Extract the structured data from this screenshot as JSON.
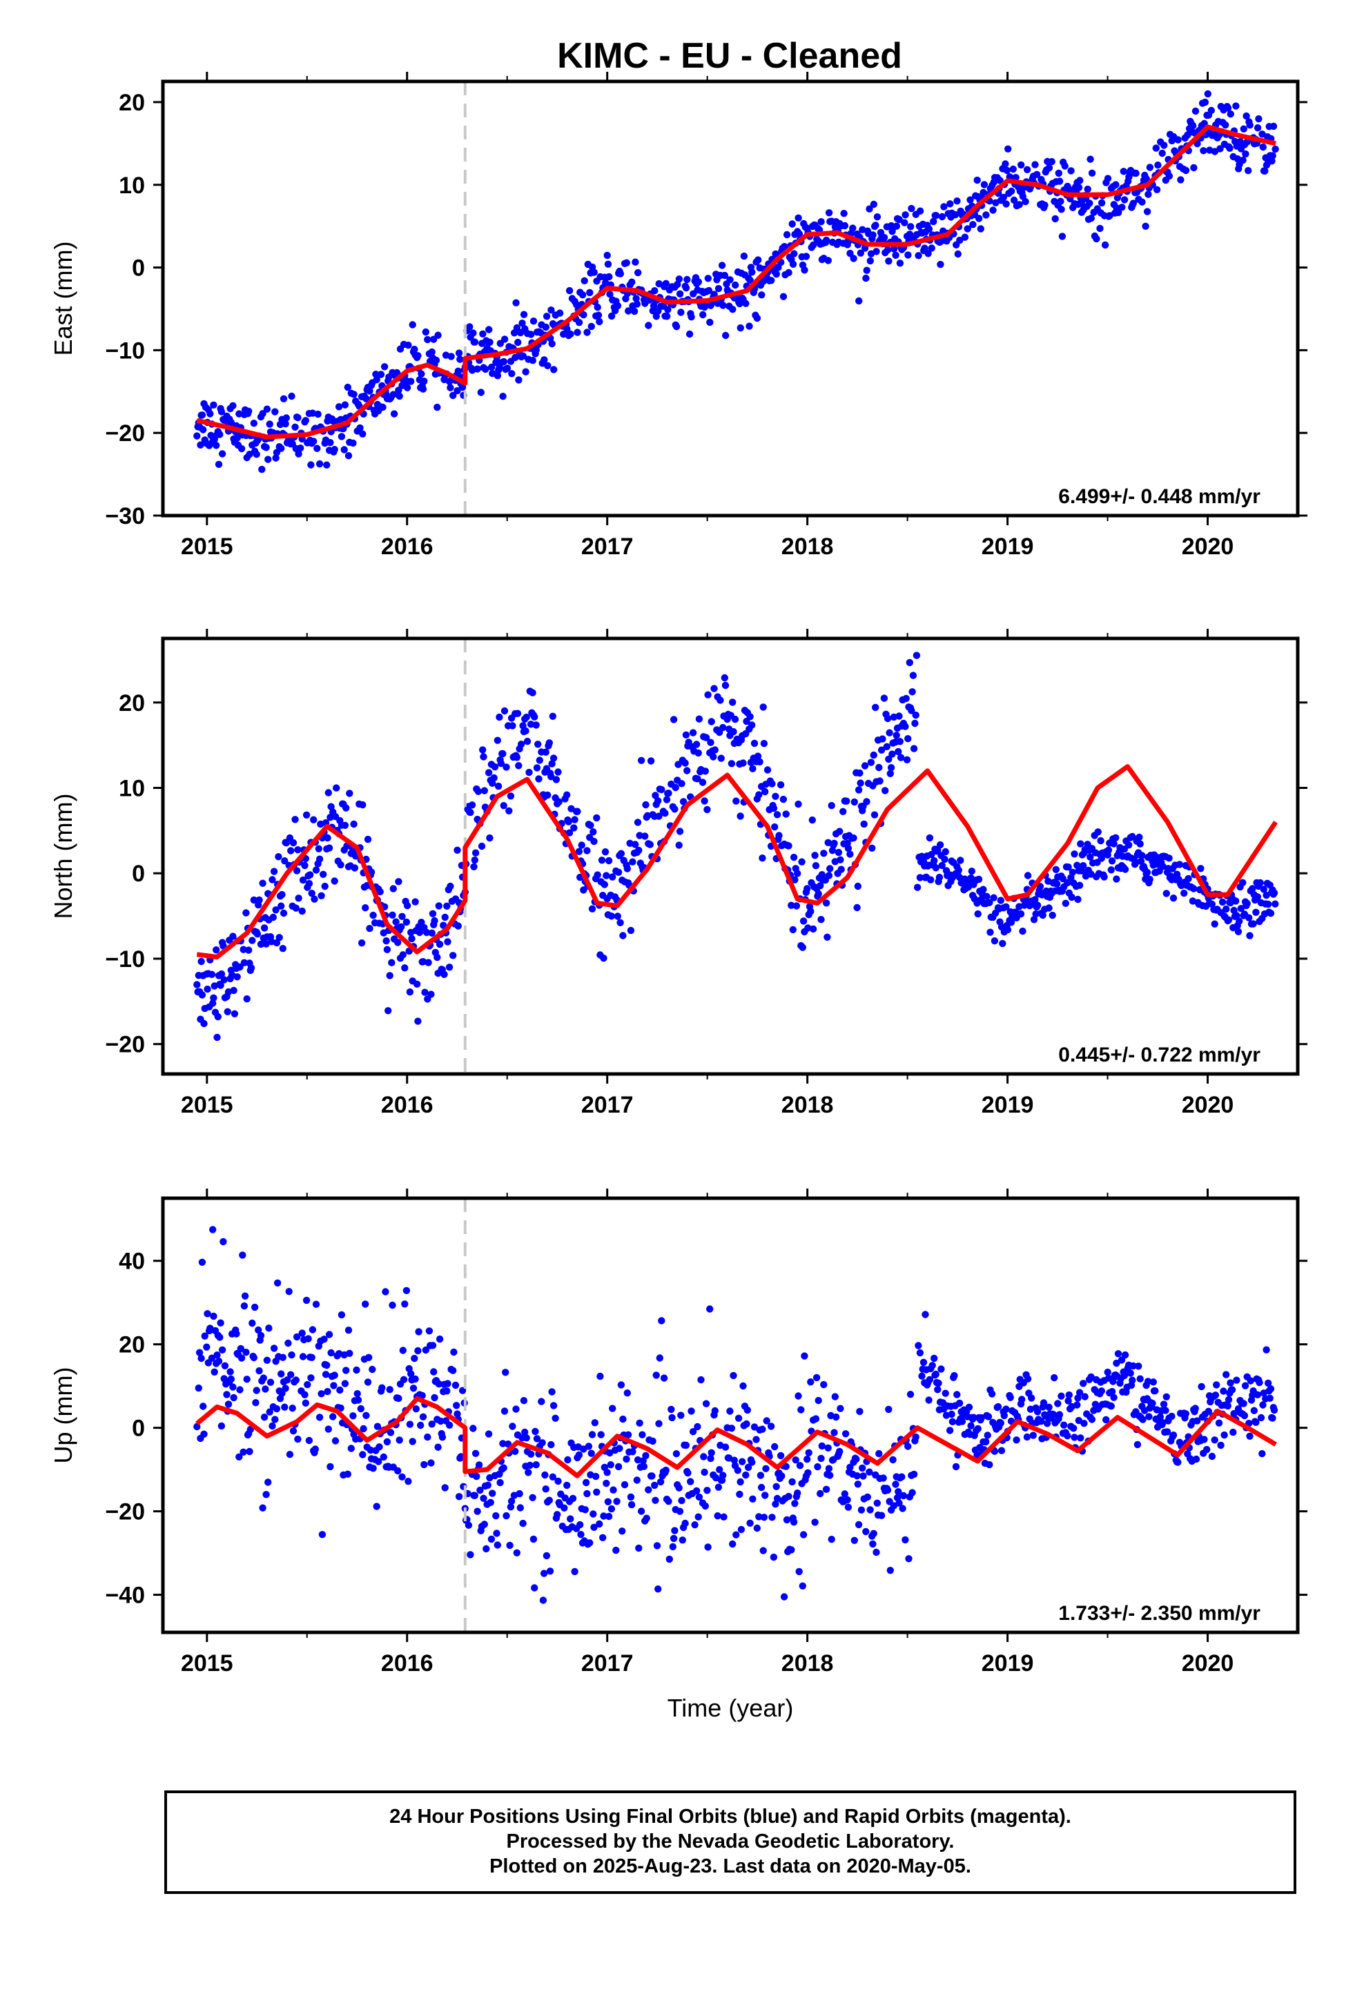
{
  "title": "KIMC  - EU - Cleaned",
  "xlabel": "Time (year)",
  "footer": {
    "line1": "24 Hour Positions Using Final Orbits (blue) and Rapid Orbits (magenta).",
    "line2": "Processed by the Nevada Geodetic Laboratory.",
    "line3": "Plotted on 2025-Aug-23. Last data on 2020-May-05."
  },
  "colors": {
    "data": "#0000ff",
    "model": "#ff0000",
    "break_line": "#c8c8c8"
  },
  "chart_data": [
    {
      "type": "scatter",
      "panel": "east",
      "ylabel": "East (mm)",
      "xlim": [
        2014.78,
        2020.45
      ],
      "ylim": [
        -30,
        22.5
      ],
      "xticks": [
        2015,
        2016,
        2017,
        2018,
        2019,
        2020
      ],
      "yticks": [
        -30,
        -20,
        -10,
        0,
        10,
        20
      ],
      "rate_text": "6.499+/- 0.448 mm/yr",
      "equipment_break": 2016.29,
      "data_range": [
        2014.95,
        2020.34
      ],
      "model": {
        "breaks": [
          2016.29
        ],
        "points": [
          [
            2014.95,
            -18.5
          ],
          [
            2015.1,
            -19.3
          ],
          [
            2015.3,
            -20.5
          ],
          [
            2015.5,
            -20.2
          ],
          [
            2015.7,
            -18.8
          ],
          [
            2015.85,
            -15.5
          ],
          [
            2016.0,
            -12.5
          ],
          [
            2016.1,
            -11.8
          ],
          [
            2016.2,
            -12.8
          ],
          [
            2016.29,
            -14.0
          ],
          [
            2016.29,
            -11.0
          ],
          [
            2016.45,
            -10.5
          ],
          [
            2016.6,
            -9.8
          ],
          [
            2016.8,
            -6.5
          ],
          [
            2017.0,
            -2.5
          ],
          [
            2017.15,
            -2.8
          ],
          [
            2017.3,
            -4.2
          ],
          [
            2017.5,
            -4.0
          ],
          [
            2017.7,
            -2.8
          ],
          [
            2017.85,
            1.0
          ],
          [
            2018.0,
            4.0
          ],
          [
            2018.15,
            4.2
          ],
          [
            2018.3,
            2.8
          ],
          [
            2018.5,
            2.8
          ],
          [
            2018.7,
            4.0
          ],
          [
            2018.85,
            7.5
          ],
          [
            2019.0,
            10.5
          ],
          [
            2019.15,
            10.0
          ],
          [
            2019.3,
            8.8
          ],
          [
            2019.5,
            8.8
          ],
          [
            2019.7,
            10.0
          ],
          [
            2019.85,
            13.5
          ],
          [
            2020.0,
            17.0
          ],
          [
            2020.15,
            16.0
          ],
          [
            2020.34,
            15.0
          ]
        ]
      },
      "noise_mm": 1.8
    },
    {
      "type": "scatter",
      "panel": "north",
      "ylabel": "North (mm)",
      "xlim": [
        2014.78,
        2020.45
      ],
      "ylim": [
        -23.5,
        27.5
      ],
      "xticks": [
        2015,
        2016,
        2017,
        2018,
        2019,
        2020
      ],
      "yticks": [
        -20,
        -10,
        0,
        10,
        20
      ],
      "rate_text": "0.445+/- 0.722 mm/yr",
      "equipment_break": 2016.29,
      "data_range": [
        2014.95,
        2020.34
      ],
      "model": {
        "breaks": [
          2016.29
        ],
        "points": [
          [
            2014.95,
            -9.5
          ],
          [
            2015.05,
            -9.8
          ],
          [
            2015.2,
            -7.0
          ],
          [
            2015.4,
            0.0
          ],
          [
            2015.6,
            5.5
          ],
          [
            2015.75,
            3.0
          ],
          [
            2015.9,
            -6.0
          ],
          [
            2016.05,
            -9.2
          ],
          [
            2016.2,
            -6.5
          ],
          [
            2016.29,
            -3.2
          ],
          [
            2016.29,
            3.0
          ],
          [
            2016.45,
            9.0
          ],
          [
            2016.6,
            11.0
          ],
          [
            2016.8,
            4.0
          ],
          [
            2016.95,
            -3.5
          ],
          [
            2017.05,
            -3.8
          ],
          [
            2017.2,
            0.5
          ],
          [
            2017.4,
            8.0
          ],
          [
            2017.6,
            11.5
          ],
          [
            2017.8,
            5.5
          ],
          [
            2017.95,
            -3.0
          ],
          [
            2018.05,
            -3.5
          ],
          [
            2018.2,
            -0.5
          ],
          [
            2018.4,
            7.5
          ],
          [
            2018.6,
            12.0
          ],
          [
            2018.8,
            5.5
          ],
          [
            2019.0,
            -3.0
          ],
          [
            2019.1,
            -2.5
          ],
          [
            2019.3,
            3.5
          ],
          [
            2019.45,
            10.0
          ],
          [
            2019.6,
            12.5
          ],
          [
            2019.8,
            6.0
          ],
          [
            2020.0,
            -2.5
          ],
          [
            2020.1,
            -2.5
          ],
          [
            2020.34,
            6.0
          ]
        ]
      },
      "data_segments": [
        {
          "range": [
            2014.95,
            2016.29
          ],
          "shift": [
            [
              2014.95,
              -5.0
            ],
            [
              2015.3,
              -1.5
            ],
            [
              2015.6,
              -1.0
            ],
            [
              2016.29,
              0.0
            ]
          ],
          "noise_mm": 3.0
        },
        {
          "range": [
            2016.29,
            2018.55
          ],
          "shift": [
            [
              2016.29,
              1.0
            ],
            [
              2016.6,
              6.0
            ],
            [
              2016.95,
              1.0
            ],
            [
              2017.6,
              6.5
            ],
            [
              2018.0,
              1.0
            ],
            [
              2018.55,
              9.0
            ]
          ],
          "noise_mm": 3.2
        },
        {
          "range": [
            2018.55,
            2020.34
          ],
          "shift": [
            [
              2018.55,
              -11.0
            ],
            [
              2019.1,
              -1.5
            ],
            [
              2019.6,
              -10.5
            ],
            [
              2020.0,
              0.0
            ],
            [
              2020.34,
              -8.5
            ]
          ],
          "noise_mm": 1.3
        }
      ]
    },
    {
      "type": "scatter",
      "panel": "up",
      "ylabel": "Up (mm)",
      "xlim": [
        2014.78,
        2020.45
      ],
      "ylim": [
        -49,
        55
      ],
      "xticks": [
        2015,
        2016,
        2017,
        2018,
        2019,
        2020
      ],
      "yticks": [
        -40,
        -20,
        0,
        20,
        40
      ],
      "rate_text": "1.733+/- 2.350 mm/yr",
      "equipment_break": 2016.29,
      "data_range": [
        2014.95,
        2020.34
      ],
      "model": {
        "breaks": [
          2016.29
        ],
        "points": [
          [
            2014.95,
            1.0
          ],
          [
            2015.05,
            5.0
          ],
          [
            2015.15,
            3.5
          ],
          [
            2015.3,
            -2.0
          ],
          [
            2015.45,
            1.5
          ],
          [
            2015.55,
            5.5
          ],
          [
            2015.65,
            4.0
          ],
          [
            2015.8,
            -3.0
          ],
          [
            2015.95,
            1.5
          ],
          [
            2016.05,
            7.0
          ],
          [
            2016.15,
            5.0
          ],
          [
            2016.29,
            0.0
          ],
          [
            2016.29,
            -10.5
          ],
          [
            2016.4,
            -10.0
          ],
          [
            2016.55,
            -3.5
          ],
          [
            2016.7,
            -6.0
          ],
          [
            2016.85,
            -11.5
          ],
          [
            2017.05,
            -2.0
          ],
          [
            2017.2,
            -5.0
          ],
          [
            2017.35,
            -9.5
          ],
          [
            2017.55,
            -0.5
          ],
          [
            2017.7,
            -4.0
          ],
          [
            2017.85,
            -9.5
          ],
          [
            2018.05,
            -1.0
          ],
          [
            2018.2,
            -4.0
          ],
          [
            2018.35,
            -8.5
          ],
          [
            2018.55,
            0.0
          ],
          [
            2018.7,
            -4.0
          ],
          [
            2018.85,
            -8.0
          ],
          [
            2019.05,
            1.5
          ],
          [
            2019.2,
            -1.5
          ],
          [
            2019.35,
            -5.5
          ],
          [
            2019.55,
            2.5
          ],
          [
            2019.7,
            -2.0
          ],
          [
            2019.85,
            -6.5
          ],
          [
            2020.05,
            4.0
          ],
          [
            2020.2,
            0.0
          ],
          [
            2020.34,
            -4.0
          ]
        ]
      },
      "data_segments": [
        {
          "range": [
            2014.95,
            2016.29
          ],
          "shift": [
            [
              2014.95,
              14.0
            ],
            [
              2016.29,
              -2.0
            ]
          ],
          "noise_mm": 11.0
        },
        {
          "range": [
            2016.29,
            2018.55
          ],
          "shift": [
            [
              2016.29,
              -5.0
            ],
            [
              2017.0,
              -6.0
            ],
            [
              2018.0,
              -4.0
            ],
            [
              2018.55,
              -8.0
            ]
          ],
          "noise_mm": 10.0
        },
        {
          "range": [
            2018.55,
            2020.34
          ],
          "shift": [
            [
              2018.55,
              15.0
            ],
            [
              2019.0,
              2.0
            ],
            [
              2019.6,
              10.0
            ],
            [
              2020.0,
              0.0
            ],
            [
              2020.34,
              10.0
            ]
          ],
          "noise_mm": 4.0
        }
      ]
    }
  ]
}
